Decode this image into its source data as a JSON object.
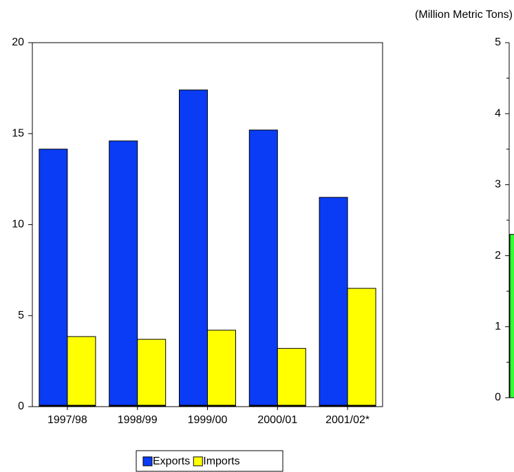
{
  "chart_data": [
    {
      "type": "bar",
      "subtitle": "(Million Metric Tons)",
      "categories": [
        "1997/98",
        "1998/99",
        "1999/00",
        "2000/01",
        "2001/02*"
      ],
      "series": [
        {
          "name": "Exports",
          "color": "#0a3cf5",
          "values": [
            14.15,
            14.6,
            17.4,
            15.2,
            11.5
          ]
        },
        {
          "name": "Imports",
          "color": "#ffff00",
          "values": [
            3.85,
            3.7,
            4.2,
            3.2,
            6.5
          ]
        }
      ],
      "ylim": [
        0,
        20
      ],
      "yticks": [
        0,
        5,
        10,
        15,
        20
      ],
      "legend": "bottom"
    },
    {
      "type": "bar",
      "categories": [
        null
      ],
      "series": [
        {
          "color": "#33ff33",
          "values": [
            2.3
          ]
        }
      ],
      "ylim": [
        0,
        5
      ],
      "yticks": [
        0,
        1,
        2,
        3,
        4,
        5
      ]
    }
  ]
}
